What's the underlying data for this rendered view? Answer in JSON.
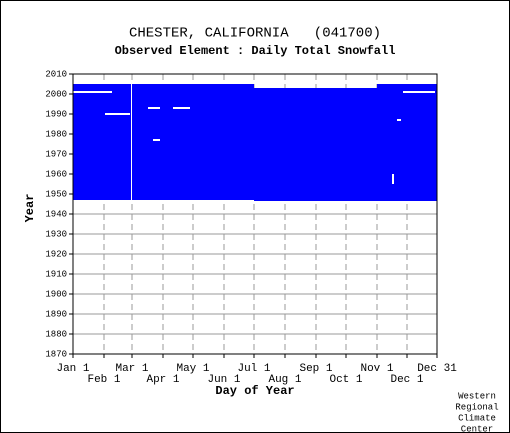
{
  "chart_data": {
    "type": "availability",
    "title": "CHESTER, CALIFORNIA   (041700)",
    "subtitle": "Observed Element : Daily Total Snowfall",
    "xlabel": "Day of Year",
    "ylabel": "Year",
    "color": "#0000ff",
    "gap_color": "#ffffff",
    "xlim": [
      1,
      365
    ],
    "ylim": [
      1870,
      2010
    ],
    "xticks": [
      {
        "value": 1,
        "label": "Jan 1"
      },
      {
        "value": 32,
        "label": "Feb 1"
      },
      {
        "value": 60,
        "label": "Mar 1"
      },
      {
        "value": 91,
        "label": "Apr 1"
      },
      {
        "value": 121,
        "label": "May 1"
      },
      {
        "value": 152,
        "label": "Jun 1"
      },
      {
        "value": 182,
        "label": "Jul 1"
      },
      {
        "value": 213,
        "label": "Aug 1"
      },
      {
        "value": 244,
        "label": "Sep 1"
      },
      {
        "value": 274,
        "label": "Oct 1"
      },
      {
        "value": 305,
        "label": "Nov 1"
      },
      {
        "value": 335,
        "label": "Dec 1"
      },
      {
        "value": 365,
        "label": "Dec 31"
      }
    ],
    "yticks": [
      1870,
      1880,
      1890,
      1900,
      1910,
      1920,
      1930,
      1940,
      1950,
      1960,
      1970,
      1980,
      1990,
      2000,
      2010
    ],
    "blocks": [
      {
        "x": [
          1,
          182
        ],
        "y": [
          1947,
          2005
        ]
      },
      {
        "x": [
          182,
          365
        ],
        "y": [
          1946.5,
          2003
        ]
      },
      {
        "x": [
          305,
          365
        ],
        "y": [
          2003,
          2005
        ]
      }
    ],
    "gaps": [
      {
        "x": [
          1,
          40
        ],
        "y": [
          2000.5,
          2001.5
        ]
      },
      {
        "x": [
          33,
          58
        ],
        "y": [
          1989.5,
          1990.5
        ]
      },
      {
        "x": [
          59,
          60
        ],
        "y": [
          1947,
          2005
        ]
      },
      {
        "x": [
          76,
          88
        ],
        "y": [
          1992.5,
          1993.5
        ]
      },
      {
        "x": [
          81,
          88
        ],
        "y": [
          1976.5,
          1977.5
        ]
      },
      {
        "x": [
          101,
          118
        ],
        "y": [
          1992.5,
          1993.5
        ]
      },
      {
        "x": [
          325,
          329
        ],
        "y": [
          1986.5,
          1987.5
        ]
      },
      {
        "x": [
          331,
          363
        ],
        "y": [
          2000.5,
          2001.5
        ]
      },
      {
        "x": [
          320,
          322
        ],
        "y": [
          1955,
          1960
        ]
      }
    ],
    "footer": [
      "Western",
      "Regional",
      "Climate",
      "Center"
    ]
  }
}
